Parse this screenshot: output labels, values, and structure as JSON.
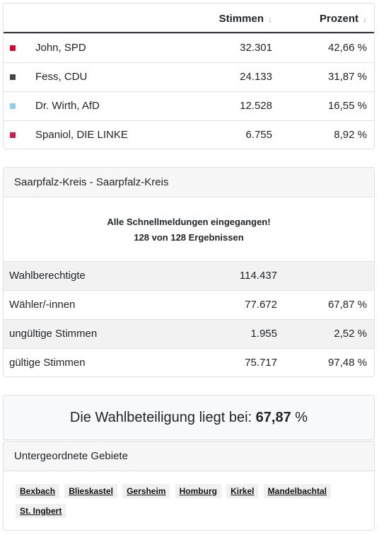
{
  "results": {
    "headers": {
      "votes": "Stimmen",
      "percent": "Prozent",
      "sort_icon": "↓"
    },
    "rows": [
      {
        "name": "John, SPD",
        "votes": "32.301",
        "percent": "42,66 %",
        "color": "#d40a2a"
      },
      {
        "name": "Fess, CDU",
        "votes": "24.133",
        "percent": "31,87 %",
        "color": "#444444"
      },
      {
        "name": "Dr. Wirth, AfD",
        "votes": "12.528",
        "percent": "16,55 %",
        "color": "#8ecbee"
      },
      {
        "name": "Spaniol, DIE LINKE",
        "votes": "6.755",
        "percent": "8,92 %",
        "color": "#d8174f"
      }
    ]
  },
  "district": {
    "title": "Saarpfalz-Kreis - Saarpfalz-Kreis",
    "notice_line1": "Alle Schnellmeldungen eingegangen!",
    "notice_line2": "128 von 128 Ergebnissen",
    "stats": [
      {
        "label": "Wahlberechtigte",
        "value": "114.437",
        "percent": ""
      },
      {
        "label": "Wähler/-innen",
        "value": "77.672",
        "percent": "67,87 %"
      },
      {
        "label": "ungültige Stimmen",
        "value": "1.955",
        "percent": "2,52 %"
      },
      {
        "label": "gültige Stimmen",
        "value": "75.717",
        "percent": "97,48 %"
      }
    ]
  },
  "turnout": {
    "prefix": "Die Wahlbeteiligung liegt bei:",
    "value": "67,87",
    "unit": "%"
  },
  "subareas": {
    "title": "Untergeordnete Gebiete",
    "links": [
      "Bexbach",
      "Blieskastel",
      "Gersheim",
      "Homburg",
      "Kirkel",
      "Mandelbachtal",
      "St. Ingbert"
    ]
  }
}
